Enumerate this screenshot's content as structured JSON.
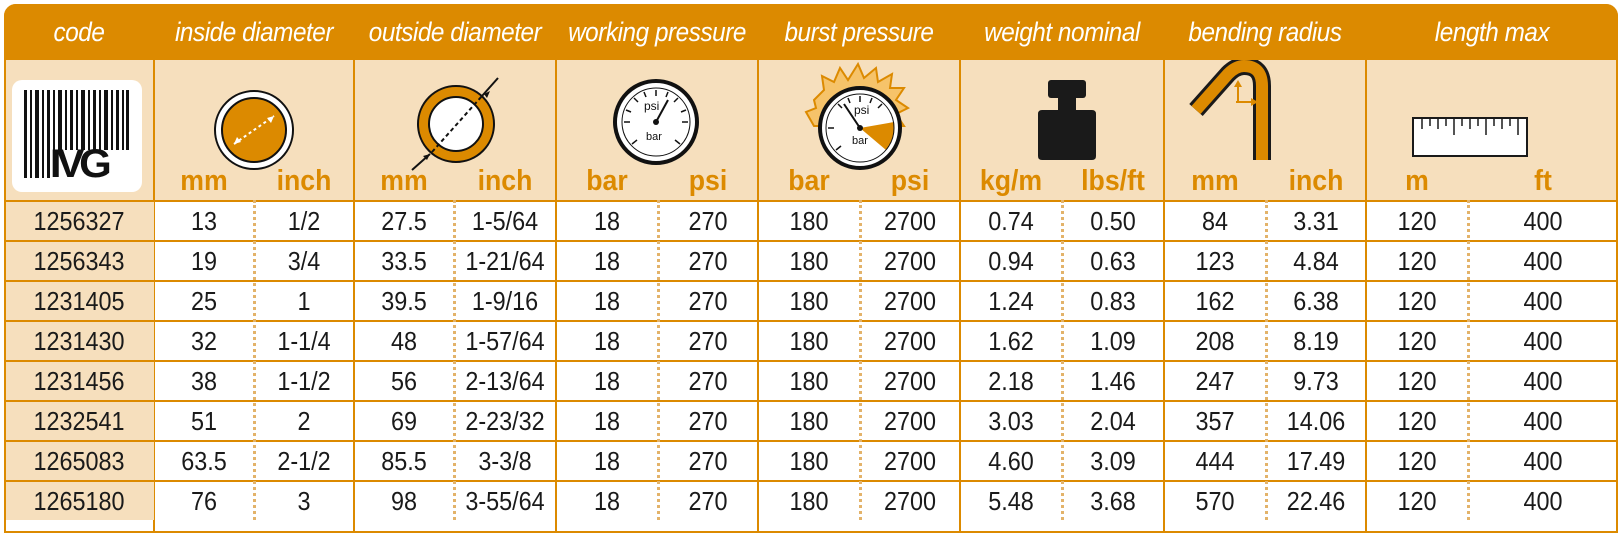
{
  "header": {
    "columns": [
      "code",
      "inside diameter",
      "outside diameter",
      "working pressure",
      "burst pressure",
      "weight nominal",
      "bending radius",
      "length max"
    ]
  },
  "logo": {
    "text": "IVG"
  },
  "gauge": {
    "label_psi": "psi",
    "label_bar": "bar"
  },
  "units": [
    "mm",
    "inch",
    "mm",
    "inch",
    "bar",
    "psi",
    "bar",
    "psi",
    "kg/m",
    "lbs/ft",
    "mm",
    "inch",
    "m",
    "ft"
  ],
  "rows": [
    [
      "1256327",
      "13",
      "1/2",
      "27.5",
      "1-5/64",
      "18",
      "270",
      "180",
      "2700",
      "0.74",
      "0.50",
      "84",
      "3.31",
      "120",
      "400"
    ],
    [
      "1256343",
      "19",
      "3/4",
      "33.5",
      "1-21/64",
      "18",
      "270",
      "180",
      "2700",
      "0.94",
      "0.63",
      "123",
      "4.84",
      "120",
      "400"
    ],
    [
      "1231405",
      "25",
      "1",
      "39.5",
      "1-9/16",
      "18",
      "270",
      "180",
      "2700",
      "1.24",
      "0.83",
      "162",
      "6.38",
      "120",
      "400"
    ],
    [
      "1231430",
      "32",
      "1-1/4",
      "48",
      "1-57/64",
      "18",
      "270",
      "180",
      "2700",
      "1.62",
      "1.09",
      "208",
      "8.19",
      "120",
      "400"
    ],
    [
      "1231456",
      "38",
      "1-1/2",
      "56",
      "2-13/64",
      "18",
      "270",
      "180",
      "2700",
      "2.18",
      "1.46",
      "247",
      "9.73",
      "120",
      "400"
    ],
    [
      "1232541",
      "51",
      "2",
      "69",
      "2-23/32",
      "18",
      "270",
      "180",
      "2700",
      "3.03",
      "2.04",
      "357",
      "14.06",
      "120",
      "400"
    ],
    [
      "1265083",
      "63.5",
      "2-1/2",
      "85.5",
      "3-3/8",
      "18",
      "270",
      "180",
      "2700",
      "4.60",
      "3.09",
      "444",
      "17.49",
      "120",
      "400"
    ],
    [
      "1265180",
      "76",
      "3",
      "98",
      "3-55/64",
      "18",
      "270",
      "180",
      "2700",
      "5.48",
      "3.68",
      "570",
      "22.46",
      "120",
      "400"
    ]
  ],
  "colors": {
    "accent": "#dc8a00",
    "band": "#f6dfbd",
    "text": "#1a1a1a"
  }
}
